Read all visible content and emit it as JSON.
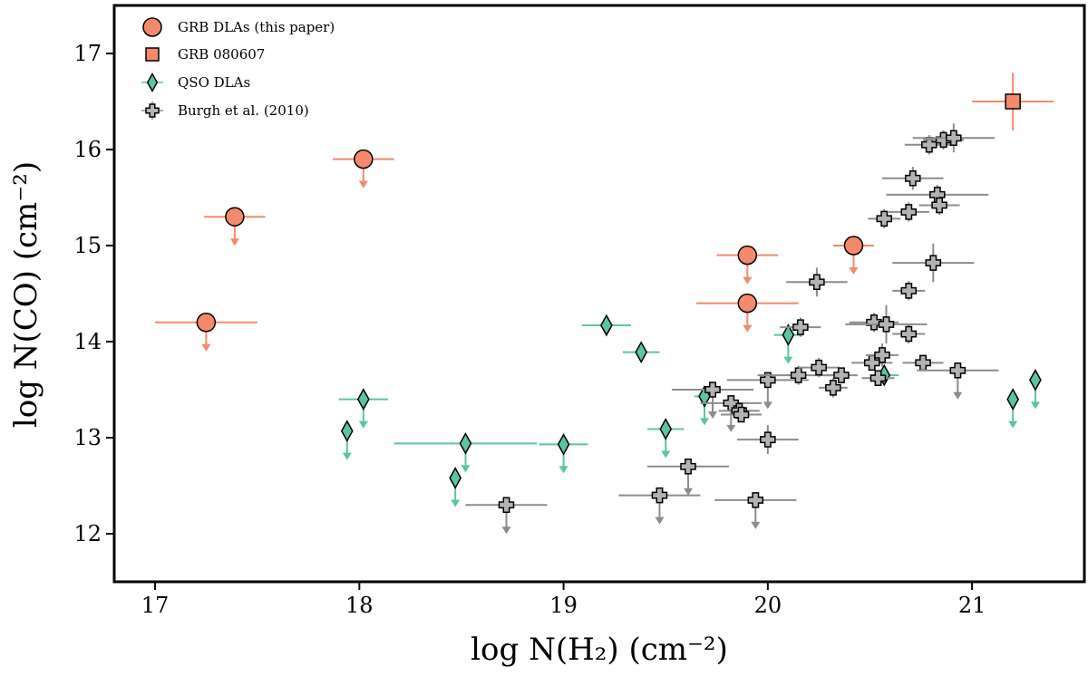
{
  "chart_data": {
    "type": "scatter",
    "xlabel": "log N(H₂) (cm⁻²)",
    "ylabel": "log N(CO) (cm⁻²)",
    "xlim": [
      16.8,
      21.55
    ],
    "ylim": [
      11.5,
      17.5
    ],
    "xticks": [
      17,
      18,
      19,
      20,
      21
    ],
    "yticks": [
      12,
      13,
      14,
      15,
      16,
      17
    ],
    "grid": false,
    "legend_position": "top-left",
    "colors": {
      "grb": "#f4896b",
      "qso_fill": "#5cc4a0",
      "qso_err": "#5cc4a0",
      "burgh_fill": "#b3b3b3",
      "burgh_err": "#8c8c8c"
    },
    "series": [
      {
        "name": "GRB DLAs (this paper)",
        "marker": "circle",
        "points": [
          {
            "x": 17.25,
            "y": 14.2,
            "xerr": 0.25,
            "upper": true
          },
          {
            "x": 17.39,
            "y": 15.3,
            "xerr": 0.15,
            "upper": true
          },
          {
            "x": 18.02,
            "y": 15.9,
            "xerr": 0.15,
            "upper": true
          },
          {
            "x": 19.9,
            "y": 14.9,
            "xerr": 0.15,
            "upper": true
          },
          {
            "x": 19.9,
            "y": 14.4,
            "xerr": 0.25,
            "upper": true
          },
          {
            "x": 20.42,
            "y": 15.0,
            "xerr": 0.1,
            "upper": true
          }
        ]
      },
      {
        "name": "GRB 080607",
        "marker": "square",
        "points": [
          {
            "x": 21.2,
            "y": 16.5,
            "xerr": 0.2,
            "yerr": 0.3,
            "upper": false
          }
        ]
      },
      {
        "name": "QSO DLAs",
        "marker": "diamond",
        "points": [
          {
            "x": 17.94,
            "y": 13.07,
            "xerr": 0,
            "upper": true
          },
          {
            "x": 18.02,
            "y": 13.4,
            "xerr": 0.12,
            "upper": true
          },
          {
            "x": 18.47,
            "y": 12.58,
            "xerr": 0,
            "upper": true
          },
          {
            "x": 18.52,
            "y": 12.94,
            "xerr": 0.35,
            "upper": true
          },
          {
            "x": 19.0,
            "y": 12.93,
            "xerr": 0.12,
            "upper": true
          },
          {
            "x": 19.21,
            "y": 14.17,
            "xerr": 0.12,
            "upper": false
          },
          {
            "x": 19.38,
            "y": 13.89,
            "xerr": 0.09,
            "upper": false
          },
          {
            "x": 19.5,
            "y": 13.09,
            "xerr": 0.09,
            "upper": true
          },
          {
            "x": 19.69,
            "y": 13.43,
            "xerr": 0.05,
            "upper": true
          },
          {
            "x": 20.1,
            "y": 14.07,
            "xerr": 0.07,
            "upper": true
          },
          {
            "x": 20.57,
            "y": 13.65,
            "xerr": 0.07,
            "upper": false
          },
          {
            "x": 21.2,
            "y": 13.4,
            "xerr": 0,
            "upper": true
          },
          {
            "x": 21.31,
            "y": 13.6,
            "xerr": 0,
            "upper": true
          }
        ]
      },
      {
        "name": "Burgh et al. (2010)",
        "marker": "plus",
        "points": [
          {
            "x": 18.72,
            "y": 12.3,
            "xerr": 0.2,
            "upper": true
          },
          {
            "x": 19.47,
            "y": 12.4,
            "xerr": 0.2,
            "upper": true
          },
          {
            "x": 19.61,
            "y": 12.7,
            "xerr": 0.2,
            "upper": true
          },
          {
            "x": 19.73,
            "y": 13.5,
            "xerr": 0.2,
            "upper": true
          },
          {
            "x": 19.82,
            "y": 13.36,
            "xerr": 0.15,
            "upper": true
          },
          {
            "x": 19.86,
            "y": 13.28,
            "xerr": 0.1,
            "upper": false
          },
          {
            "x": 19.87,
            "y": 13.24,
            "xerr": 0.1,
            "upper": false
          },
          {
            "x": 19.94,
            "y": 12.35,
            "xerr": 0.2,
            "upper": true
          },
          {
            "x": 20.0,
            "y": 12.98,
            "xerr": 0.15,
            "yerr": 0.15,
            "upper": false
          },
          {
            "x": 20.0,
            "y": 13.6,
            "xerr": 0.2,
            "upper": true
          },
          {
            "x": 20.15,
            "y": 13.65,
            "xerr": 0.2,
            "yerr": 0.1,
            "upper": false
          },
          {
            "x": 20.16,
            "y": 14.15,
            "xerr": 0.1,
            "yerr": 0.1,
            "upper": false
          },
          {
            "x": 20.24,
            "y": 14.62,
            "xerr": 0.15,
            "yerr": 0.15,
            "upper": false
          },
          {
            "x": 20.25,
            "y": 13.73,
            "xerr": 0.1,
            "yerr": 0.1,
            "upper": false
          },
          {
            "x": 20.32,
            "y": 13.52,
            "xerr": 0.07,
            "yerr": 0.1,
            "upper": false
          },
          {
            "x": 20.36,
            "y": 13.65,
            "xerr": 0.08,
            "upper": false
          },
          {
            "x": 20.51,
            "y": 13.78,
            "xerr": 0.1,
            "upper": false
          },
          {
            "x": 20.52,
            "y": 14.2,
            "xerr": 0.12,
            "yerr": 0.1,
            "upper": false
          },
          {
            "x": 20.54,
            "y": 13.62,
            "xerr": 0.08,
            "upper": false
          },
          {
            "x": 20.56,
            "y": 13.86,
            "xerr": 0.08,
            "yerr": 0.12,
            "upper": false
          },
          {
            "x": 20.57,
            "y": 15.28,
            "xerr": 0.08,
            "yerr": 0.1,
            "upper": false
          },
          {
            "x": 20.58,
            "y": 14.18,
            "xerr": 0.2,
            "yerr": 0.2,
            "upper": false
          },
          {
            "x": 20.69,
            "y": 15.35,
            "xerr": 0.1,
            "yerr": 0.1,
            "upper": false
          },
          {
            "x": 20.69,
            "y": 14.53,
            "xerr": 0.08,
            "yerr": 0.1,
            "upper": false
          },
          {
            "x": 20.69,
            "y": 14.08,
            "xerr": 0.08,
            "yerr": 0.1,
            "upper": false
          },
          {
            "x": 20.71,
            "y": 15.7,
            "xerr": 0.15,
            "yerr": 0.12,
            "upper": false
          },
          {
            "x": 20.76,
            "y": 13.78,
            "xerr": 0.1,
            "upper": false
          },
          {
            "x": 20.79,
            "y": 16.05,
            "xerr": 0.12,
            "yerr": 0.1,
            "upper": false
          },
          {
            "x": 20.81,
            "y": 14.82,
            "xerr": 0.2,
            "yerr": 0.2,
            "upper": false
          },
          {
            "x": 20.83,
            "y": 15.53,
            "xerr": 0.25,
            "yerr": 0.1,
            "upper": false
          },
          {
            "x": 20.84,
            "y": 15.42,
            "xerr": 0.1,
            "yerr": 0.1,
            "upper": false
          },
          {
            "x": 20.86,
            "y": 16.1,
            "xerr": 0.1,
            "yerr": 0.1,
            "upper": false
          },
          {
            "x": 20.91,
            "y": 16.12,
            "xerr": 0.2,
            "yerr": 0.15,
            "upper": false
          },
          {
            "x": 20.93,
            "y": 13.7,
            "xerr": 0.2,
            "upper": true
          }
        ]
      }
    ]
  }
}
